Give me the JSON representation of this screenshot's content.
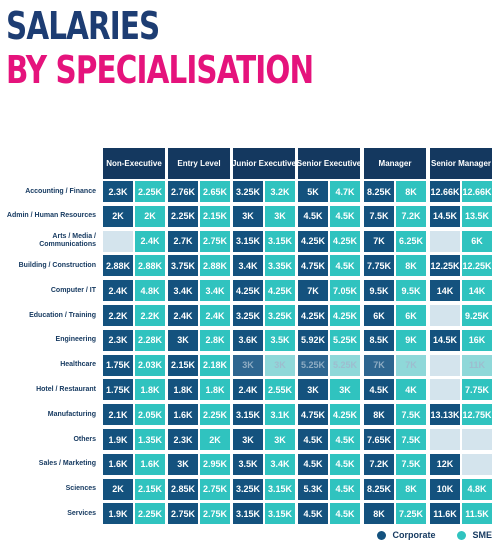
{
  "title": {
    "line1": "SALARIES",
    "line2": "BY SPECIALISATION"
  },
  "chart_data": {
    "type": "table",
    "columns": [
      "Non-Executive",
      "Entry Level",
      "Junior Executive",
      "Senior Executive",
      "Manager",
      "Senior Manager"
    ],
    "series_names": [
      "Corporate",
      "SME"
    ],
    "rows": [
      {
        "label": "Accounting / Finance",
        "values": [
          [
            "2.3K",
            "2.25K"
          ],
          [
            "2.76K",
            "2.65K"
          ],
          [
            "3.25K",
            "3.2K"
          ],
          [
            "5K",
            "4.7K"
          ],
          [
            "8.25K",
            "8K"
          ],
          [
            "12.66K",
            "12.66K"
          ]
        ]
      },
      {
        "label": "Admin / Human Resources",
        "values": [
          [
            "2K",
            "2K"
          ],
          [
            "2.25K",
            "2.15K"
          ],
          [
            "3K",
            "3K"
          ],
          [
            "4.5K",
            "4.5K"
          ],
          [
            "7.5K",
            "7.2K"
          ],
          [
            "14.5K",
            "13.5K"
          ]
        ]
      },
      {
        "label": "Arts / Media / Communications",
        "values": [
          [
            "",
            "2.4K"
          ],
          [
            "2.7K",
            "2.75K"
          ],
          [
            "3.15K",
            "3.15K"
          ],
          [
            "4.25K",
            "4.25K"
          ],
          [
            "7K",
            "6.25K"
          ],
          [
            "",
            "6K"
          ]
        ]
      },
      {
        "label": "Building / Construction",
        "values": [
          [
            "2.88K",
            "2.88K"
          ],
          [
            "3.75K",
            "2.88K"
          ],
          [
            "3.4K",
            "3.35K"
          ],
          [
            "4.75K",
            "4.5K"
          ],
          [
            "7.75K",
            "8K"
          ],
          [
            "12.25K",
            "12.25K"
          ]
        ]
      },
      {
        "label": "Computer / IT",
        "values": [
          [
            "2.4K",
            "4.8K"
          ],
          [
            "3.4K",
            "3.4K"
          ],
          [
            "4.25K",
            "4.25K"
          ],
          [
            "7K",
            "7.05K"
          ],
          [
            "9.5K",
            "9.5K"
          ],
          [
            "14K",
            "14K"
          ]
        ]
      },
      {
        "label": "Education / Training",
        "values": [
          [
            "2.2K",
            "2.2K"
          ],
          [
            "2.4K",
            "2.4K"
          ],
          [
            "3.25K",
            "3.25K"
          ],
          [
            "4.25K",
            "4.25K"
          ],
          [
            "6K",
            "6K"
          ],
          [
            "",
            "9.25K"
          ]
        ]
      },
      {
        "label": "Engineering",
        "values": [
          [
            "2.3K",
            "2.28K"
          ],
          [
            "3K",
            "2.8K"
          ],
          [
            "3.6K",
            "3.5K"
          ],
          [
            "5.92K",
            "5.25K"
          ],
          [
            "8.5K",
            "9K"
          ],
          [
            "14.5K",
            "16K"
          ]
        ]
      },
      {
        "label": "Healthcare",
        "values": [
          [
            "1.75K",
            "2.03K"
          ],
          [
            "2.15K",
            "2.18K"
          ],
          [
            "3K",
            "3K"
          ],
          [
            "5.25K",
            "5.25K"
          ],
          [
            "7K",
            "7K"
          ],
          [
            "",
            "11K"
          ]
        ],
        "muted": [
          [
            false,
            false
          ],
          [
            false,
            false
          ],
          [
            true,
            true
          ],
          [
            true,
            true
          ],
          [
            true,
            true
          ],
          [
            false,
            true
          ]
        ]
      },
      {
        "label": "Hotel / Restaurant",
        "values": [
          [
            "1.75K",
            "1.8K"
          ],
          [
            "1.8K",
            "1.8K"
          ],
          [
            "2.4K",
            "2.55K"
          ],
          [
            "3K",
            "3K"
          ],
          [
            "4.5K",
            "4K"
          ],
          [
            "",
            "7.75K"
          ]
        ]
      },
      {
        "label": "Manufacturing",
        "values": [
          [
            "2.1K",
            "2.05K"
          ],
          [
            "1.6K",
            "2.25K"
          ],
          [
            "3.15K",
            "3.1K"
          ],
          [
            "4.75K",
            "4.25K"
          ],
          [
            "8K",
            "7.5K"
          ],
          [
            "13.13K",
            "12.75K"
          ]
        ]
      },
      {
        "label": "Others",
        "values": [
          [
            "1.9K",
            "1.35K"
          ],
          [
            "2.3K",
            "2K"
          ],
          [
            "3K",
            "3K"
          ],
          [
            "4.5K",
            "4.5K"
          ],
          [
            "7.65K",
            "7.5K"
          ],
          [
            "",
            ""
          ]
        ]
      },
      {
        "label": "Sales / Marketing",
        "values": [
          [
            "1.6K",
            "1.6K"
          ],
          [
            "3K",
            "2.95K"
          ],
          [
            "3.5K",
            "3.4K"
          ],
          [
            "4.5K",
            "4.5K"
          ],
          [
            "7.2K",
            "7.5K"
          ],
          [
            "12K",
            ""
          ]
        ]
      },
      {
        "label": "Sciences",
        "values": [
          [
            "2K",
            "2.15K"
          ],
          [
            "2.85K",
            "2.75K"
          ],
          [
            "3.25K",
            "3.15K"
          ],
          [
            "5.3K",
            "4.5K"
          ],
          [
            "8.25K",
            "8K"
          ],
          [
            "10K",
            "4.8K"
          ]
        ]
      },
      {
        "label": "Services",
        "values": [
          [
            "1.9K",
            "2.25K"
          ],
          [
            "2.75K",
            "2.75K"
          ],
          [
            "3.15K",
            "3.15K"
          ],
          [
            "4.5K",
            "4.5K"
          ],
          [
            "8K",
            "7.25K"
          ],
          [
            "11.6K",
            "11.5K"
          ]
        ]
      }
    ]
  },
  "legend": {
    "corporate": "Corporate",
    "sme": "SME"
  },
  "colors": {
    "corporate": "#14527e",
    "sme": "#30c3bf",
    "empty": "#d4e4ed",
    "header": "#14385f",
    "title_line1": "#1d3d73",
    "title_line2": "#e5137c"
  }
}
